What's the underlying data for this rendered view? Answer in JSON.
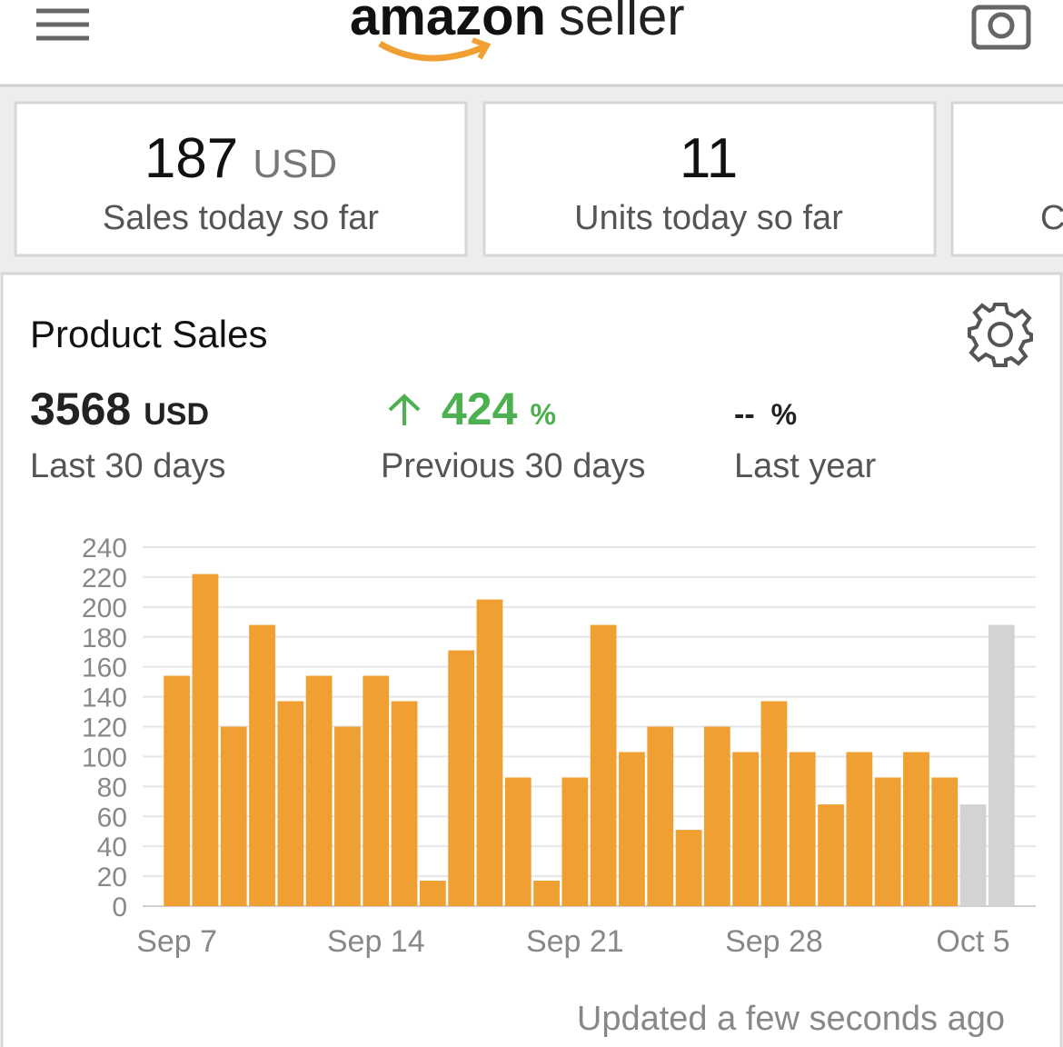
{
  "header": {
    "logo_bold": "amazon",
    "logo_light": "seller"
  },
  "cards": [
    {
      "value": "187",
      "unit": "USD",
      "label": "Sales today so far"
    },
    {
      "value": "11",
      "label": "Units today so far"
    },
    {
      "label": "C"
    }
  ],
  "panel": {
    "title": "Product Sales",
    "metrics": [
      {
        "value": "3568",
        "unit": "USD",
        "label": "Last 30 days"
      },
      {
        "value": "424",
        "unit": "%",
        "label": "Previous 30 days"
      },
      {
        "value": "--",
        "unit": "%",
        "label": "Last year"
      }
    ],
    "footer": "Updated a few seconds ago"
  },
  "chart_data": {
    "type": "bar",
    "categories": [
      "Sep 7",
      null,
      null,
      null,
      null,
      null,
      null,
      "Sep 14",
      null,
      null,
      null,
      null,
      null,
      null,
      "Sep 21",
      null,
      null,
      null,
      null,
      null,
      null,
      "Sep 28",
      null,
      null,
      null,
      null,
      null,
      null,
      "Oct 5",
      null
    ],
    "values": [
      154,
      222,
      120,
      188,
      137,
      154,
      120,
      154,
      137,
      17,
      171,
      205,
      86,
      17,
      86,
      188,
      103,
      120,
      51,
      120,
      103,
      137,
      103,
      68,
      103,
      86,
      103,
      86,
      68,
      188
    ],
    "colors": [
      "#f0a033",
      "#f0a033",
      "#f0a033",
      "#f0a033",
      "#f0a033",
      "#f0a033",
      "#f0a033",
      "#f0a033",
      "#f0a033",
      "#f0a033",
      "#f0a033",
      "#f0a033",
      "#f0a033",
      "#f0a033",
      "#f0a033",
      "#f0a033",
      "#f0a033",
      "#f0a033",
      "#f0a033",
      "#f0a033",
      "#f0a033",
      "#f0a033",
      "#f0a033",
      "#f0a033",
      "#f0a033",
      "#f0a033",
      "#f0a033",
      "#f0a033",
      "#d3d3d5",
      "#d3d3d5"
    ],
    "ylim": [
      0,
      240
    ],
    "yticks": [
      0,
      20,
      40,
      60,
      80,
      100,
      120,
      140,
      160,
      180,
      200,
      220,
      240
    ],
    "grid": true
  }
}
